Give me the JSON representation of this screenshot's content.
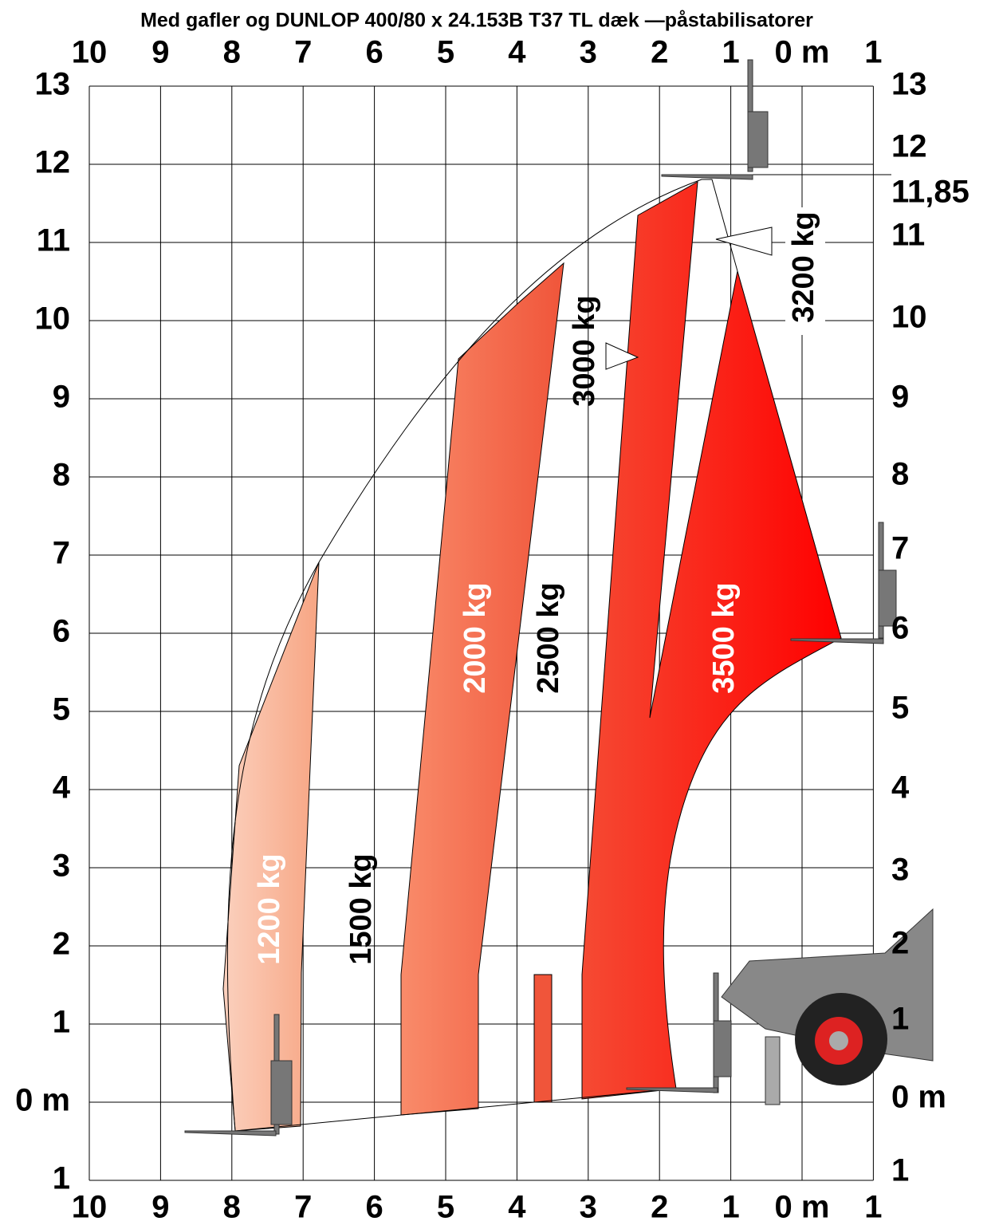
{
  "title": "Med gafler og DUNLOP 400/80 x 24.153B T37 TL dæk —påstabilisatorer",
  "top_axis": {
    "labels": [
      "10",
      "9",
      "8",
      "7",
      "6",
      "5",
      "4",
      "3",
      "2",
      "1",
      "0 m",
      "1"
    ]
  },
  "bottom_axis": {
    "labels": [
      "10",
      "9",
      "8",
      "7",
      "6",
      "5",
      "4",
      "3",
      "2",
      "1",
      "0 m",
      "1"
    ]
  },
  "left_axis": {
    "labels": [
      "13",
      "12",
      "11",
      "10",
      "9",
      "8",
      "7",
      "6",
      "5",
      "4",
      "3",
      "2",
      "1",
      "0 m",
      "1"
    ]
  },
  "right_axis": {
    "labels": [
      "13",
      "12",
      "11,85",
      "11",
      "10",
      "9",
      "8",
      "7",
      "6",
      "5",
      "4",
      "3",
      "2",
      "1",
      "0 m",
      "1"
    ]
  },
  "zones": [
    {
      "label": "1200 kg"
    },
    {
      "label": "1500 kg"
    },
    {
      "label": "2000 kg"
    },
    {
      "label": "2500 kg"
    },
    {
      "label": "3000 kg"
    },
    {
      "label": "3200 kg"
    },
    {
      "label": "3500 kg"
    }
  ]
}
